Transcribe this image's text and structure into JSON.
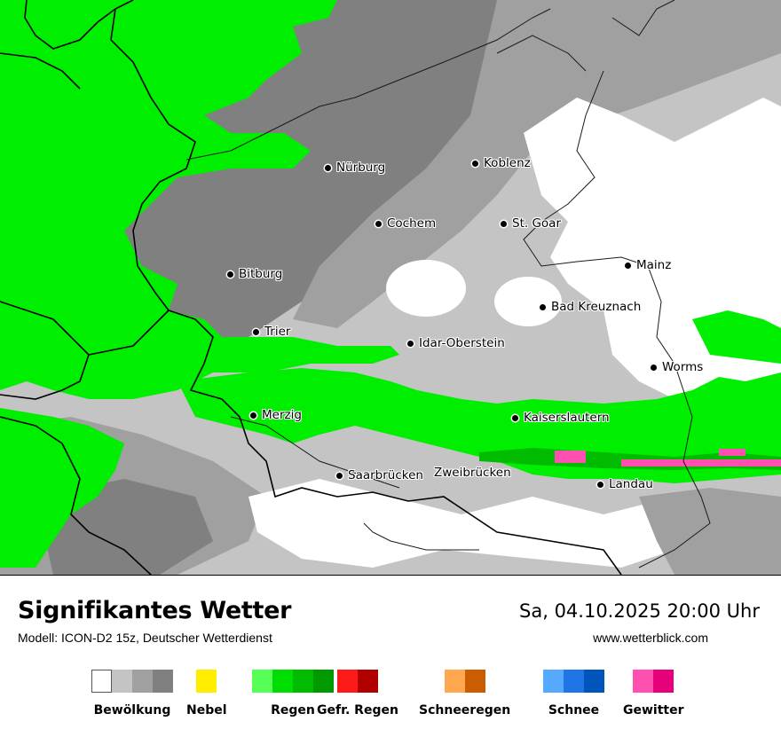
{
  "map": {
    "cities": [
      {
        "name": "Nürburg"
      },
      {
        "name": "Koblenz"
      },
      {
        "name": "Cochem"
      },
      {
        "name": "St. Goar"
      },
      {
        "name": "Mainz"
      },
      {
        "name": "Bitburg"
      },
      {
        "name": "Bad Kreuznach"
      },
      {
        "name": "Trier"
      },
      {
        "name": "Idar-Oberstein"
      },
      {
        "name": "Worms"
      },
      {
        "name": "Merzig"
      },
      {
        "name": "Kaiserslautern"
      },
      {
        "name": "Saarbrücken"
      },
      {
        "name": "Zweibrücken"
      },
      {
        "name": "Landau"
      }
    ]
  },
  "footer": {
    "title": "Signifikantes Wetter",
    "model": "Modell: ICON-D2 15z, Deutscher Wetterdienst",
    "datetime": "Sa, 04.10.2025 20:00 Uhr",
    "website": "www.wetterblick.com"
  },
  "legend": [
    {
      "label": "Bewölkung",
      "colors": [
        "#ffffff",
        "#c4c4c4",
        "#a0a0a0",
        "#808080"
      ]
    },
    {
      "label": "Nebel",
      "colors": [
        "#ffee00"
      ]
    },
    {
      "label": "Regen",
      "colors": [
        "#55ff55",
        "#00dd00",
        "#00bb00",
        "#009900"
      ]
    },
    {
      "label": "Gefr. Regen",
      "colors": [
        "#ff1a1a",
        "#b00000"
      ]
    },
    {
      "label": "Schneeregen",
      "colors": [
        "#ffa850",
        "#cc5c00"
      ]
    },
    {
      "label": "Schnee",
      "colors": [
        "#55aaff",
        "#1f74e6",
        "#0055bb"
      ]
    },
    {
      "label": "Gewitter",
      "colors": [
        "#ff4fb0",
        "#e6007a"
      ]
    }
  ]
}
